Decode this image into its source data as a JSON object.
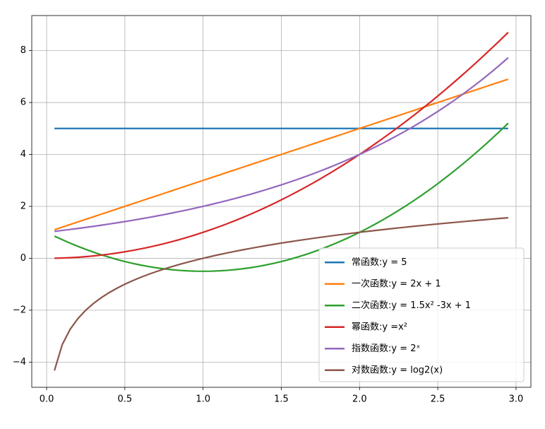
{
  "chart_data": {
    "type": "line",
    "x": [
      0.05,
      0.1,
      0.15,
      0.2,
      0.25,
      0.3,
      0.35,
      0.4,
      0.45,
      0.5,
      0.55,
      0.6,
      0.65,
      0.7,
      0.75,
      0.8,
      0.85,
      0.9,
      0.95,
      1.0,
      1.05,
      1.1,
      1.15,
      1.2,
      1.25,
      1.3,
      1.35,
      1.4,
      1.45,
      1.5,
      1.55,
      1.6,
      1.65,
      1.7,
      1.75,
      1.8,
      1.85,
      1.9,
      1.95,
      2.0,
      2.05,
      2.1,
      2.15,
      2.2,
      2.25,
      2.3,
      2.35,
      2.4,
      2.45,
      2.5,
      2.55,
      2.6,
      2.65,
      2.7,
      2.75,
      2.8,
      2.85,
      2.9,
      2.95
    ],
    "series": [
      {
        "name": "常函数:y = 5",
        "color": "#1f77b4",
        "values": [
          5,
          5,
          5,
          5,
          5,
          5,
          5,
          5,
          5,
          5,
          5,
          5,
          5,
          5,
          5,
          5,
          5,
          5,
          5,
          5,
          5,
          5,
          5,
          5,
          5,
          5,
          5,
          5,
          5,
          5,
          5,
          5,
          5,
          5,
          5,
          5,
          5,
          5,
          5,
          5,
          5,
          5,
          5,
          5,
          5,
          5,
          5,
          5,
          5,
          5,
          5,
          5,
          5,
          5,
          5,
          5,
          5,
          5,
          5
        ]
      },
      {
        "name": "一次函数:y = 2x + 1",
        "color": "#ff7f0e",
        "values": [
          1.1,
          1.2,
          1.3,
          1.4,
          1.5,
          1.6,
          1.7,
          1.8,
          1.9,
          2.0,
          2.1,
          2.2,
          2.3,
          2.4,
          2.5,
          2.6,
          2.7,
          2.8,
          2.9,
          3.0,
          3.1,
          3.2,
          3.3,
          3.4,
          3.5,
          3.6,
          3.7,
          3.8,
          3.9,
          4.0,
          4.1,
          4.2,
          4.3,
          4.4,
          4.5,
          4.6,
          4.7,
          4.8,
          4.9,
          5.0,
          5.1,
          5.2,
          5.3,
          5.4,
          5.5,
          5.6,
          5.7,
          5.8,
          5.9,
          6.0,
          6.1,
          6.2,
          6.3,
          6.4,
          6.5,
          6.6,
          6.7,
          6.8,
          6.9
        ]
      },
      {
        "name": "二次函数:y = 1.5x² -3x + 1",
        "color": "#2ca02c",
        "values": [
          0.8538,
          0.715,
          0.5838,
          0.46,
          0.3438,
          0.235,
          0.1338,
          0.04,
          -0.0463,
          -0.125,
          -0.1963,
          -0.26,
          -0.3163,
          -0.365,
          -0.4063,
          -0.44,
          -0.4663,
          -0.485,
          -0.4963,
          -0.5,
          -0.4963,
          -0.485,
          -0.4663,
          -0.44,
          -0.4063,
          -0.365,
          -0.3163,
          -0.26,
          -0.1963,
          -0.125,
          -0.0463,
          0.04,
          0.1338,
          0.235,
          0.3438,
          0.46,
          0.5838,
          0.715,
          0.8538,
          1.0,
          1.1538,
          1.315,
          1.4838,
          1.66,
          1.8438,
          2.035,
          2.2338,
          2.44,
          2.6538,
          2.875,
          3.1038,
          3.34,
          3.5838,
          3.835,
          4.0938,
          4.36,
          4.6338,
          4.915,
          5.2038
        ]
      },
      {
        "name": "幂函数:y =x²",
        "color": "#d62728",
        "values": [
          0.0025,
          0.01,
          0.0225,
          0.04,
          0.0625,
          0.09,
          0.1225,
          0.16,
          0.2025,
          0.25,
          0.3025,
          0.36,
          0.4225,
          0.49,
          0.5625,
          0.64,
          0.7225,
          0.81,
          0.9025,
          1,
          1.1025,
          1.21,
          1.3225,
          1.44,
          1.5625,
          1.69,
          1.8225,
          1.96,
          2.1025,
          2.25,
          2.4025,
          2.56,
          2.7225,
          2.89,
          3.0625,
          3.24,
          3.4225,
          3.61,
          3.8025,
          4,
          4.2025,
          4.41,
          4.6225,
          4.84,
          5.0625,
          5.29,
          5.5225,
          5.76,
          6.0025,
          6.25,
          6.5025,
          6.76,
          7.0225,
          7.29,
          7.5625,
          7.84,
          8.1225,
          8.41,
          8.7025
        ]
      },
      {
        "name": "指数函数:y = 2ˣ",
        "color": "#9467bd",
        "values": [
          1.035,
          1.072,
          1.11,
          1.149,
          1.189,
          1.231,
          1.275,
          1.32,
          1.366,
          1.414,
          1.464,
          1.516,
          1.569,
          1.625,
          1.682,
          1.741,
          1.803,
          1.866,
          1.932,
          2,
          2.071,
          2.144,
          2.219,
          2.297,
          2.378,
          2.462,
          2.549,
          2.639,
          2.732,
          2.828,
          2.928,
          3.031,
          3.138,
          3.249,
          3.364,
          3.482,
          3.605,
          3.732,
          3.864,
          4,
          4.141,
          4.287,
          4.438,
          4.595,
          4.757,
          4.925,
          5.098,
          5.278,
          5.464,
          5.657,
          5.856,
          6.063,
          6.277,
          6.498,
          6.727,
          6.964,
          7.21,
          7.464,
          7.727
        ]
      },
      {
        "name": "对数函数:y = log2(x)",
        "color": "#8c564b",
        "values": [
          -4.322,
          -3.322,
          -2.737,
          -2.322,
          -2,
          -1.737,
          -1.515,
          -1.322,
          -1.152,
          -1,
          -0.862,
          -0.737,
          -0.621,
          -0.515,
          -0.415,
          -0.322,
          -0.234,
          -0.152,
          -0.074,
          0,
          0.07,
          0.138,
          0.202,
          0.263,
          0.322,
          0.379,
          0.433,
          0.485,
          0.536,
          0.585,
          0.632,
          0.678,
          0.722,
          0.766,
          0.807,
          0.848,
          0.888,
          0.926,
          0.963,
          1,
          1.036,
          1.07,
          1.104,
          1.138,
          1.17,
          1.202,
          1.233,
          1.263,
          1.293,
          1.322,
          1.351,
          1.379,
          1.406,
          1.433,
          1.459,
          1.485,
          1.511,
          1.536,
          1.561
        ]
      }
    ],
    "xlim": [
      -0.095,
      3.095
    ],
    "ylim": [
      -4.97,
      9.35
    ],
    "xticks": [
      {
        "value": 0,
        "label": "0.0"
      },
      0.5,
      {
        "value": 1,
        "label": "1.0"
      },
      1.5,
      {
        "value": 2,
        "label": "2.0"
      },
      2.5,
      {
        "value": 3,
        "label": "3.0"
      }
    ],
    "yticks": [
      {
        "value": -4,
        "label": "−4"
      },
      {
        "value": -2,
        "label": "−2"
      },
      0,
      2,
      4,
      6,
      8
    ],
    "grid": true,
    "legend": "lower right"
  }
}
